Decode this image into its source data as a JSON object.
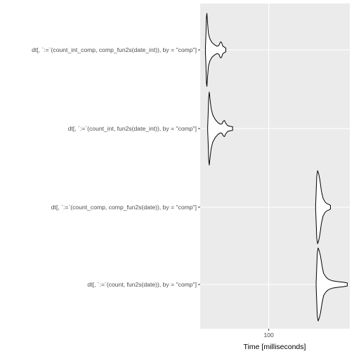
{
  "chart_data": {
    "type": "violin",
    "orientation": "horizontal",
    "xlabel": "Time [milliseconds]",
    "ylabel": "",
    "x_ticks": [
      100
    ],
    "x_tick_labels": [
      "100"
    ],
    "xlim": [
      45,
      165
    ],
    "grid": true,
    "colors": {
      "panel": "#ebebeb",
      "grid": "#ffffff",
      "outline": "#000000",
      "axis_text": "#4d4d4d"
    },
    "series": [
      {
        "label": "dt[, `:=`(count_int_comp, comp_fun2s(date_int)), by = \"comp\"]",
        "profile": [
          [
            49.2,
            0.05
          ],
          [
            49.6,
            0.4
          ],
          [
            50.0,
            0.9
          ],
          [
            50.4,
            1.0
          ],
          [
            50.9,
            0.75
          ],
          [
            51.6,
            0.45
          ],
          [
            52.8,
            0.3
          ],
          [
            54.5,
            0.2
          ],
          [
            56.5,
            0.14
          ],
          [
            58.5,
            0.1
          ],
          [
            60.0,
            0.12
          ],
          [
            61.0,
            0.2
          ],
          [
            61.5,
            0.22
          ],
          [
            62.2,
            0.2
          ],
          [
            63.2,
            0.1
          ],
          [
            64.2,
            0.08
          ],
          [
            65.6,
            0.05
          ]
        ]
      },
      {
        "label": "dt[, `:=`(count_int, fun2s(date_int)), by = \"comp\"]",
        "profile": [
          [
            51.0,
            0.05
          ],
          [
            51.4,
            0.4
          ],
          [
            51.8,
            0.85
          ],
          [
            52.3,
            1.0
          ],
          [
            52.9,
            0.8
          ],
          [
            53.8,
            0.55
          ],
          [
            55.0,
            0.38
          ],
          [
            57.0,
            0.25
          ],
          [
            59.0,
            0.17
          ],
          [
            61.0,
            0.12
          ],
          [
            62.5,
            0.13
          ],
          [
            63.5,
            0.2
          ],
          [
            64.5,
            0.22
          ],
          [
            65.4,
            0.15
          ],
          [
            67.0,
            0.08
          ],
          [
            69.0,
            0.06
          ],
          [
            71.0,
            0.05
          ]
        ]
      },
      {
        "label": "dt[, `:=`(count_comp, comp_fun2s(date)), by = \"comp\"]",
        "profile": [
          [
            137.6,
            0.05
          ],
          [
            138.0,
            0.4
          ],
          [
            138.5,
            0.85
          ],
          [
            139.2,
            1.0
          ],
          [
            140.0,
            0.92
          ],
          [
            141.0,
            0.75
          ],
          [
            142.2,
            0.45
          ],
          [
            143.5,
            0.25
          ],
          [
            145.0,
            0.15
          ],
          [
            146.5,
            0.1
          ],
          [
            148.0,
            0.08
          ],
          [
            149.5,
            0.05
          ]
        ]
      },
      {
        "label": "dt[, `:=`(count, fun2s(date)), by = \"comp\"]",
        "profile": [
          [
            138.0,
            0.05
          ],
          [
            138.4,
            0.4
          ],
          [
            138.9,
            0.85
          ],
          [
            139.6,
            1.0
          ],
          [
            140.5,
            0.92
          ],
          [
            141.5,
            0.78
          ],
          [
            142.8,
            0.5
          ],
          [
            144.0,
            0.3
          ],
          [
            146.0,
            0.2
          ],
          [
            148.0,
            0.14
          ],
          [
            151.0,
            0.1
          ],
          [
            155.0,
            0.08
          ],
          [
            160.0,
            0.06
          ],
          [
            163.0,
            0.04
          ]
        ]
      }
    ]
  }
}
